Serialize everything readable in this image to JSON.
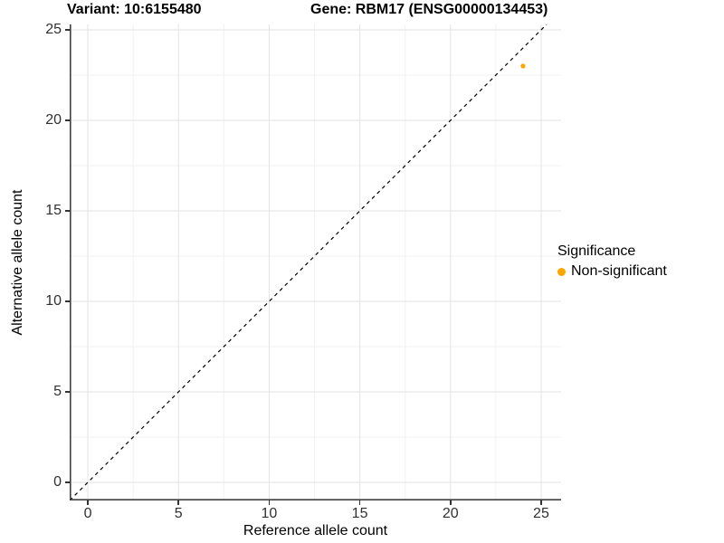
{
  "title": {
    "variant": "Variant: 10:6155480",
    "gene": "Gene: RBM17 (ENSG00000134453)"
  },
  "axes": {
    "x_label": "Reference allele count",
    "y_label": "Alternative allele count"
  },
  "legend": {
    "title": "Significance",
    "items": [
      {
        "label": "Non-significant",
        "color": "#FFA500"
      }
    ]
  },
  "colors": {
    "background": "#ffffff",
    "axis_line": "#404040",
    "major_grid": "#e3e3e3",
    "minor_grid": "#f1f1f1",
    "reference_line": "#000000",
    "non_significant": "#FFA500"
  },
  "chart_data": {
    "type": "scatter",
    "title": "Variant: 10:6155480  Gene: RBM17 (ENSG00000134453)",
    "xlabel": "Reference allele count",
    "ylabel": "Alternative allele count",
    "xlim": [
      -1,
      26.1
    ],
    "ylim": [
      -1,
      25.3
    ],
    "x_major_ticks": [
      0,
      5,
      10,
      15,
      20,
      25
    ],
    "y_major_ticks": [
      0,
      5,
      10,
      15,
      20,
      25
    ],
    "x_minor_ticks": [
      2.5,
      7.5,
      12.5,
      17.5,
      22.5
    ],
    "y_minor_ticks": [
      2.5,
      7.5,
      12.5,
      17.5,
      22.5
    ],
    "grid": "major+minor",
    "legend_position": "right",
    "series": [
      {
        "name": "Non-significant",
        "color": "#FFA500",
        "point_radius": 2.6,
        "points": [
          {
            "x": 24,
            "y": 23
          }
        ]
      }
    ],
    "reference_line": {
      "type": "abline",
      "slope": 1,
      "intercept": 0,
      "style": "dashed",
      "color": "#000000"
    }
  }
}
